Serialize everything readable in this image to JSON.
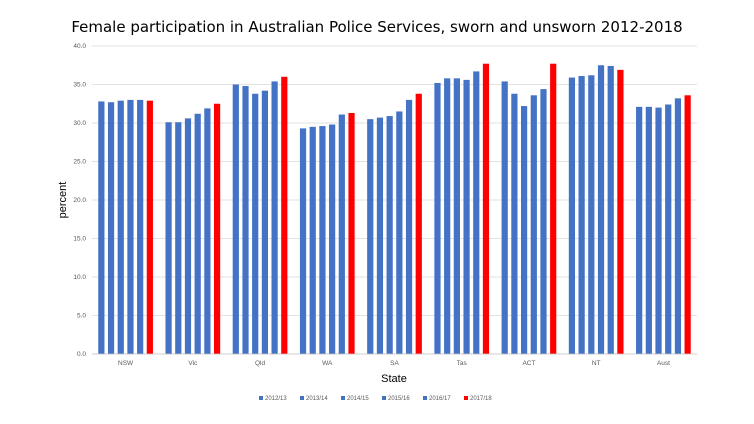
{
  "chart_data": {
    "type": "bar",
    "title": "Female participation in Australian Police Services, sworn and unsworn 2012-2018",
    "xlabel": "State",
    "ylabel": "percent",
    "ylim": [
      0,
      40
    ],
    "yticks": [
      "0.0",
      "5.0",
      "10.0",
      "15.0",
      "20.0",
      "25.0",
      "30.0",
      "35.0",
      "40.0"
    ],
    "grid": true,
    "legend_position": "bottom",
    "categories": [
      "NSW",
      "Vic",
      "Qld",
      "WA",
      "SA",
      "Tas",
      "ACT",
      "NT",
      "Aust"
    ],
    "series": [
      {
        "name": "2012/13",
        "color": "#4472c4",
        "values": [
          32.8,
          30.1,
          35.0,
          29.3,
          30.5,
          35.2,
          35.4,
          35.9,
          32.1
        ]
      },
      {
        "name": "2013/14",
        "color": "#4472c4",
        "values": [
          32.7,
          30.1,
          34.8,
          29.5,
          30.7,
          35.8,
          33.8,
          36.1,
          32.1
        ]
      },
      {
        "name": "2014/15",
        "color": "#4472c4",
        "values": [
          32.9,
          30.6,
          33.8,
          29.6,
          30.9,
          35.8,
          32.2,
          36.2,
          32.0
        ]
      },
      {
        "name": "2015/16",
        "color": "#4472c4",
        "values": [
          33.0,
          31.2,
          34.2,
          29.8,
          31.5,
          35.6,
          33.6,
          37.5,
          32.4
        ]
      },
      {
        "name": "2016/17",
        "color": "#4472c4",
        "values": [
          33.0,
          31.9,
          35.4,
          31.1,
          33.0,
          36.7,
          34.4,
          37.4,
          33.2
        ]
      },
      {
        "name": "2017/18",
        "color": "#ff0000",
        "values": [
          32.9,
          32.5,
          36.0,
          31.3,
          33.8,
          37.7,
          37.7,
          36.9,
          33.6
        ]
      }
    ]
  }
}
